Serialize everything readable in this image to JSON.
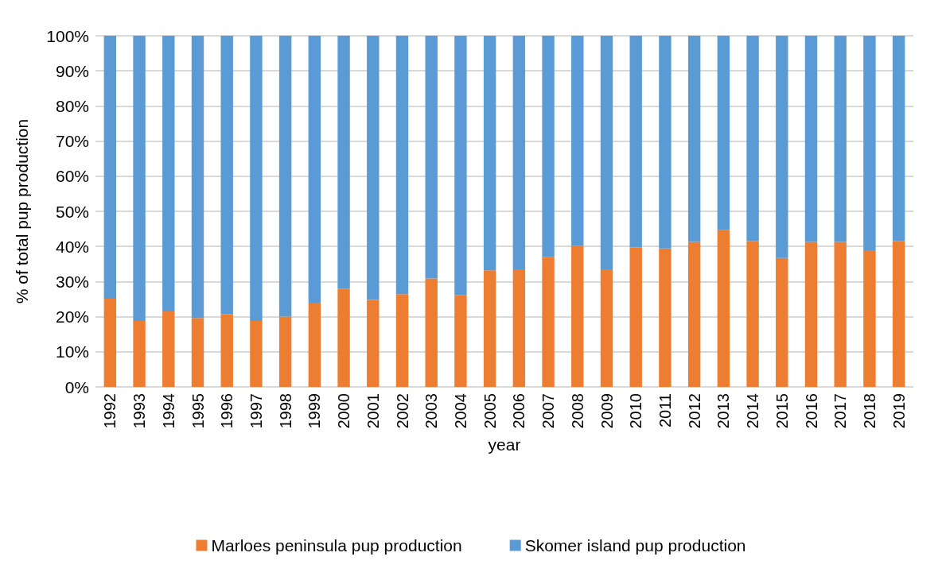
{
  "chart_data": {
    "type": "bar",
    "stacked": true,
    "xlabel": "year",
    "ylabel": "% of total pup production",
    "categories": [
      "1992",
      "1993",
      "1994",
      "1995",
      "1996",
      "1997",
      "1998",
      "1999",
      "2000",
      "2001",
      "2002",
      "2003",
      "2004",
      "2005",
      "2006",
      "2007",
      "2008",
      "2009",
      "2010",
      "2011",
      "2012",
      "2013",
      "2014",
      "2015",
      "2016",
      "2017",
      "2018",
      "2019"
    ],
    "series": [
      {
        "name": "Marloes peninsula pup production",
        "color": "#ed7d31",
        "values": [
          25.1,
          18.8,
          21.5,
          19.6,
          20.7,
          18.8,
          20.0,
          24.0,
          28.0,
          24.8,
          26.4,
          30.9,
          26.2,
          33.2,
          33.5,
          37.0,
          40.2,
          33.5,
          39.7,
          39.4,
          41.3,
          44.6,
          41.6,
          36.7,
          41.3,
          41.3,
          38.9,
          41.6
        ]
      },
      {
        "name": "Skomer island pup production",
        "color": "#5b9bd5",
        "values": [
          74.9,
          81.2,
          78.5,
          80.4,
          79.3,
          81.2,
          80.0,
          76.0,
          72.0,
          75.2,
          73.6,
          69.1,
          73.8,
          66.8,
          66.5,
          63.0,
          59.8,
          66.5,
          60.3,
          60.6,
          58.7,
          55.4,
          58.4,
          63.3,
          58.7,
          58.7,
          61.1,
          58.4
        ]
      }
    ],
    "ylim": [
      0,
      100
    ],
    "yticks": [
      {
        "value": 0,
        "label": "0%"
      },
      {
        "value": 10,
        "label": "10%"
      },
      {
        "value": 20,
        "label": "20%"
      },
      {
        "value": 30,
        "label": "30%"
      },
      {
        "value": 40,
        "label": "40%"
      },
      {
        "value": 50,
        "label": "50%"
      },
      {
        "value": 60,
        "label": "60%"
      },
      {
        "value": 70,
        "label": "70%"
      },
      {
        "value": 80,
        "label": "80%"
      },
      {
        "value": 90,
        "label": "90%"
      },
      {
        "value": 100,
        "label": "100%"
      }
    ],
    "grid": "y",
    "legend": "bottom"
  }
}
